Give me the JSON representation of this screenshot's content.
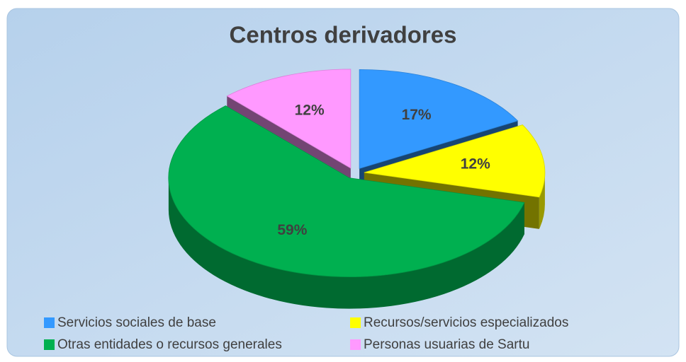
{
  "chart_data": {
    "type": "pie3d",
    "title": "Centros derivadores",
    "categories": [
      "Servicios sociales de base",
      "Recursos/servicios especializados",
      "Otras entidades o recursos generales",
      "Personas usuarias de Sartu"
    ],
    "values": [
      17,
      12,
      59,
      12
    ],
    "value_labels": [
      "17%",
      "12%",
      "59%",
      "12%"
    ],
    "colors": [
      "#3399ff",
      "#ffff00",
      "#00b050",
      "#ff99ff"
    ],
    "legend": "bottom"
  }
}
